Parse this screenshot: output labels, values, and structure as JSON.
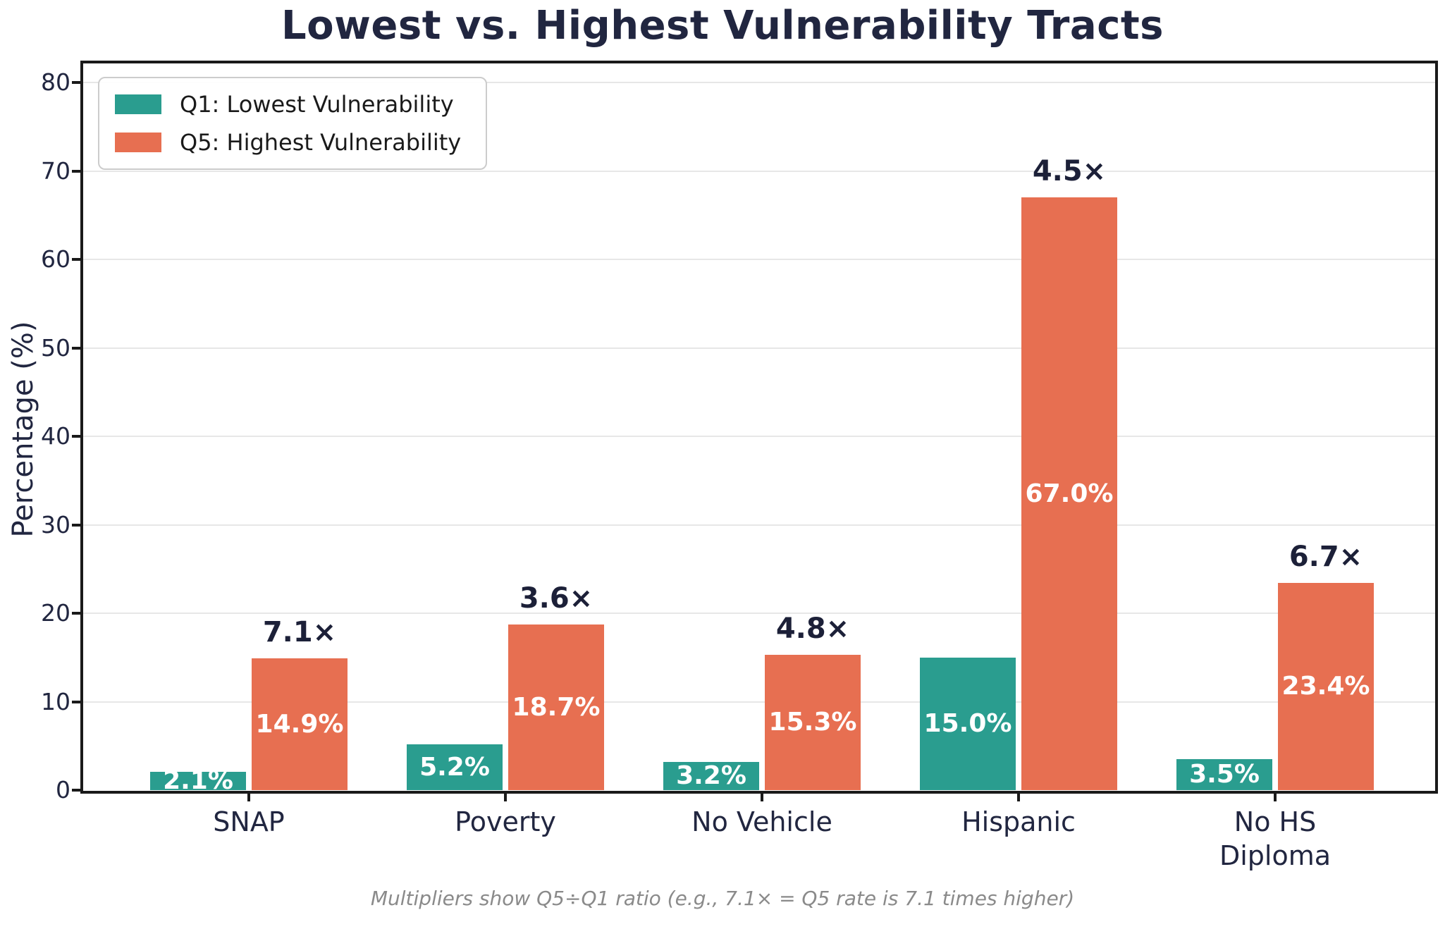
{
  "title": "Lowest vs. Highest Vulnerability Tracts",
  "footnote": "Multipliers show Q5÷Q1 ratio (e.g., 7.1× = Q5 rate is 7.1 times higher)",
  "colors": {
    "q1_teal": "#2a9d8f",
    "q5_orange": "#e76f51",
    "title_text": "#212640",
    "axis_text": "#212640",
    "multiplier_text": "#1c2038",
    "bar_value_text": "#ffffff",
    "footnote_text": "#8a8a8a",
    "gridline": "#e7e7e7",
    "spine": "#1a1a1a"
  },
  "chart_data": {
    "type": "bar",
    "title": "Lowest vs. Highest Vulnerability Tracts",
    "categories": [
      "SNAP",
      "Poverty",
      "No Vehicle",
      "Hispanic",
      "No HS\nDiploma"
    ],
    "series": [
      {
        "name": "Q1: Lowest Vulnerability",
        "color": "#2a9d8f",
        "values": [
          2.1,
          5.2,
          3.2,
          15.0,
          3.5
        ],
        "labels": [
          "2.1%",
          "5.2%",
          "3.2%",
          "15.0%",
          "3.5%"
        ]
      },
      {
        "name": "Q5: Highest Vulnerability",
        "color": "#e76f51",
        "values": [
          14.9,
          18.7,
          15.3,
          67.0,
          23.4
        ],
        "labels": [
          "14.9%",
          "18.7%",
          "15.3%",
          "67.0%",
          "23.4%"
        ]
      }
    ],
    "multipliers": [
      "7.1×",
      "3.6×",
      "4.8×",
      "4.5×",
      "6.7×"
    ],
    "xlabel": "",
    "ylabel": "Percentage (%)",
    "ylim": [
      0,
      80
    ],
    "yticks": [
      0,
      10,
      20,
      30,
      40,
      50,
      60,
      70,
      80
    ],
    "grid": true,
    "legend_position": "upper left",
    "annotation_note": "Multipliers show Q5÷Q1 ratio (e.g., 7.1× = Q5 rate is 7.1 times higher)"
  }
}
